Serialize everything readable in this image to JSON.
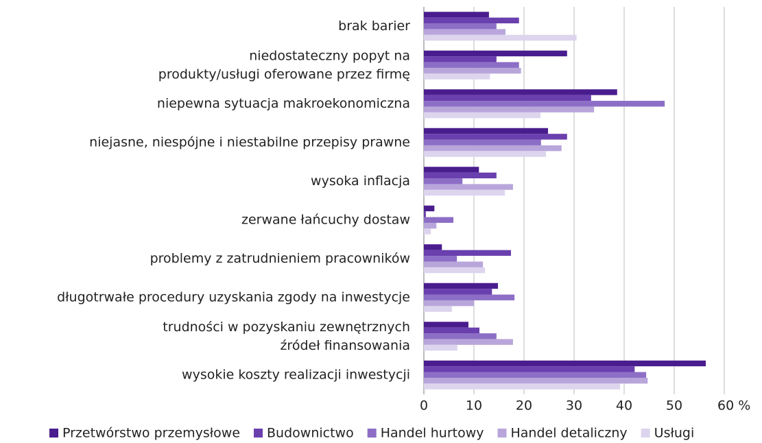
{
  "chart_data": {
    "type": "hbar",
    "categories": [
      "brak barier",
      "niedostateczny popyt na\nprodukty/usługi oferowane przez firmę",
      "niepewna sytuacja makroekonomiczna",
      "niejasne, niespójne i niestabilne przepisy prawne",
      "wysoka inflacja",
      "zerwane łańcuchy dostaw",
      "problemy z zatrudnieniem pracowników",
      "długotrwałe procedury uzyskania zgody na inwestycje",
      "trudności w pozyskaniu zewnętrznych\nźródeł finansowania",
      "wysokie koszty realizacji inwestycji"
    ],
    "series": [
      {
        "name": "Przetwórstwo przemysłowe",
        "color": "#4a1d8e",
        "values": [
          13.0,
          28.6,
          38.6,
          24.8,
          11.0,
          2.1,
          3.6,
          14.8,
          8.9,
          56.3
        ]
      },
      {
        "name": "Budownictwo",
        "color": "#6a3fae",
        "values": [
          19.0,
          14.5,
          33.4,
          28.6,
          14.5,
          0.4,
          17.4,
          13.6,
          11.1,
          42.1
        ]
      },
      {
        "name": "Handel hurtowy",
        "color": "#8d6ec6",
        "values": [
          14.5,
          19.0,
          48.1,
          23.4,
          7.7,
          5.9,
          6.6,
          18.1,
          14.5,
          44.4
        ]
      },
      {
        "name": "Handel detaliczny",
        "color": "#b8a6db",
        "values": [
          16.3,
          19.4,
          34.0,
          27.5,
          17.8,
          2.5,
          11.8,
          10.0,
          17.8,
          44.7
        ]
      },
      {
        "name": "Usługi",
        "color": "#ddd4ee",
        "values": [
          30.5,
          13.2,
          23.3,
          24.4,
          16.2,
          1.4,
          12.2,
          5.6,
          6.7,
          39.2
        ]
      }
    ],
    "xlim": [
      0,
      60
    ],
    "xticks": [
      0,
      10,
      20,
      30,
      40,
      50,
      {
        "value": 60,
        "label": "60 %"
      }
    ],
    "grid": true,
    "legend": "bottom"
  }
}
